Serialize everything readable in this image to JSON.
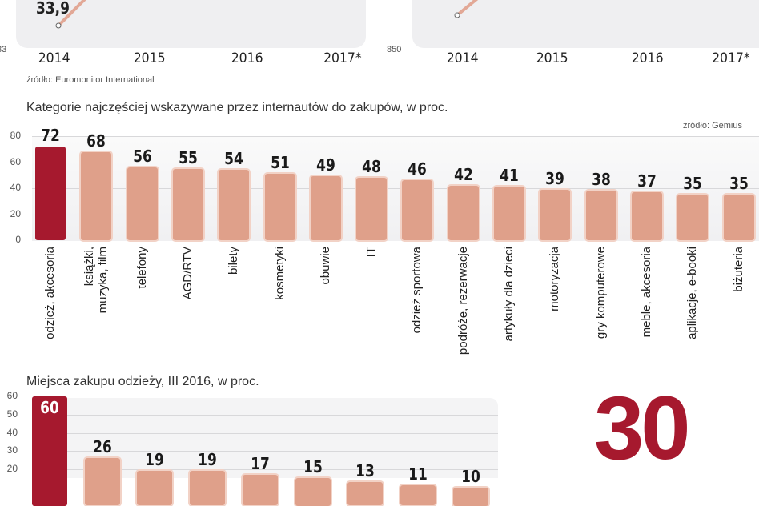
{
  "top_charts": [
    {
      "x": [
        "2014",
        "2015",
        "2016",
        "2017*"
      ],
      "axis_label": "83",
      "first_value_label": "33,9",
      "values": [
        33.9
      ]
    },
    {
      "x": [
        "2014",
        "2015",
        "2016",
        "2017*"
      ],
      "axis_label": "850"
    }
  ],
  "top_source": "źródło: Euromonitor International",
  "chart_data": [
    {
      "type": "bar",
      "title": "Kategorie najczęściej wskazywane przez internautów do zakupów, w proc.",
      "source": "źródło: Gemius",
      "ylim": [
        0,
        80
      ],
      "yticks": [
        "0",
        "20",
        "40",
        "60",
        "80"
      ],
      "grid": true,
      "categories": [
        "odzież, akcesoria",
        "książki, muzyka, film",
        "telefony",
        "AGD/RTV",
        "bilety",
        "kosmetyki",
        "obuwie",
        "IT",
        "odzież sportowa",
        "podróże, rezerwacje",
        "artykuły dla dzieci",
        "motoryzacja",
        "gry komputerowe",
        "meble, akcesoria",
        "aplikacje, e-booki",
        "biżuteria"
      ],
      "values": [
        72,
        68,
        56,
        55,
        54,
        51,
        49,
        48,
        46,
        42,
        41,
        39,
        38,
        37,
        35,
        35
      ],
      "labels": [
        "72",
        "68",
        "56",
        "55",
        "54",
        "51",
        "49",
        "48",
        "46",
        "42",
        "41",
        "39",
        "38",
        "37",
        "35",
        "35"
      ],
      "highlight_color": "#a6192e",
      "bar_color": "#dfa08a"
    },
    {
      "type": "bar",
      "title": "Miejsca zakupu odzieży, III 2016, w proc.",
      "ylim": [
        0,
        60
      ],
      "yticks": [
        "20",
        "30",
        "40",
        "50",
        "60"
      ],
      "grid": true,
      "values": [
        60,
        26,
        19,
        19,
        17,
        15,
        13,
        11,
        10
      ],
      "labels": [
        "60",
        "26",
        "19",
        "19",
        "17",
        "15",
        "13",
        "11",
        "10"
      ],
      "highlight_color": "#a6192e",
      "bar_color": "#dfa08a"
    }
  ],
  "big_number": "30"
}
